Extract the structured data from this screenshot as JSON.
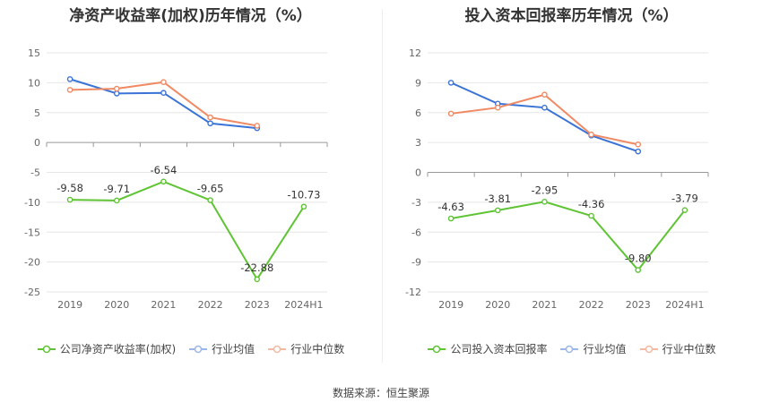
{
  "source": "数据来源：恒生聚源",
  "colors": {
    "company": "#5ec433",
    "avg": "#3a73d6",
    "median": "#f08a64"
  },
  "chart_data": [
    {
      "type": "line",
      "title": "净资产收益率(加权)历年情况（%）",
      "categories": [
        "2019",
        "2020",
        "2021",
        "2022",
        "2023",
        "2024H1"
      ],
      "ylim": [
        -25,
        15
      ],
      "yticks": [
        15,
        10,
        5,
        0,
        -5,
        -10,
        -15,
        -20,
        -25
      ],
      "grid": true,
      "legend_position": "bottom",
      "series": [
        {
          "name": "公司净资产收益率(加权)",
          "key": "company",
          "values": [
            -9.58,
            -9.71,
            -6.54,
            -9.65,
            -22.88,
            -10.73
          ],
          "labels": [
            "-9.58",
            "-9.71",
            "-6.54",
            "-9.65",
            "-22.88",
            "-10.73"
          ]
        },
        {
          "name": "行业均值",
          "key": "avg",
          "values": [
            10.6,
            8.2,
            8.3,
            3.2,
            2.4,
            null
          ]
        },
        {
          "name": "行业中位数",
          "key": "median",
          "values": [
            8.8,
            9.0,
            10.1,
            4.2,
            2.8,
            null
          ]
        }
      ]
    },
    {
      "type": "line",
      "title": "投入资本回报率历年情况（%）",
      "categories": [
        "2019",
        "2020",
        "2021",
        "2022",
        "2023",
        "2024H1"
      ],
      "ylim": [
        -12,
        12
      ],
      "yticks": [
        12,
        9,
        6,
        3,
        0,
        -3,
        -6,
        -9,
        -12
      ],
      "grid": true,
      "legend_position": "bottom",
      "series": [
        {
          "name": "公司投入资本回报率",
          "key": "company",
          "values": [
            -4.63,
            -3.81,
            -2.95,
            -4.36,
            -9.8,
            -3.79
          ],
          "labels": [
            "-4.63",
            "-3.81",
            "-2.95",
            "-4.36",
            "-9.80",
            "-3.79"
          ]
        },
        {
          "name": "行业均值",
          "key": "avg",
          "values": [
            9.0,
            6.9,
            6.5,
            3.7,
            2.1,
            null
          ]
        },
        {
          "name": "行业中位数",
          "key": "median",
          "values": [
            5.9,
            6.5,
            7.8,
            3.8,
            2.8,
            null
          ]
        }
      ]
    }
  ]
}
